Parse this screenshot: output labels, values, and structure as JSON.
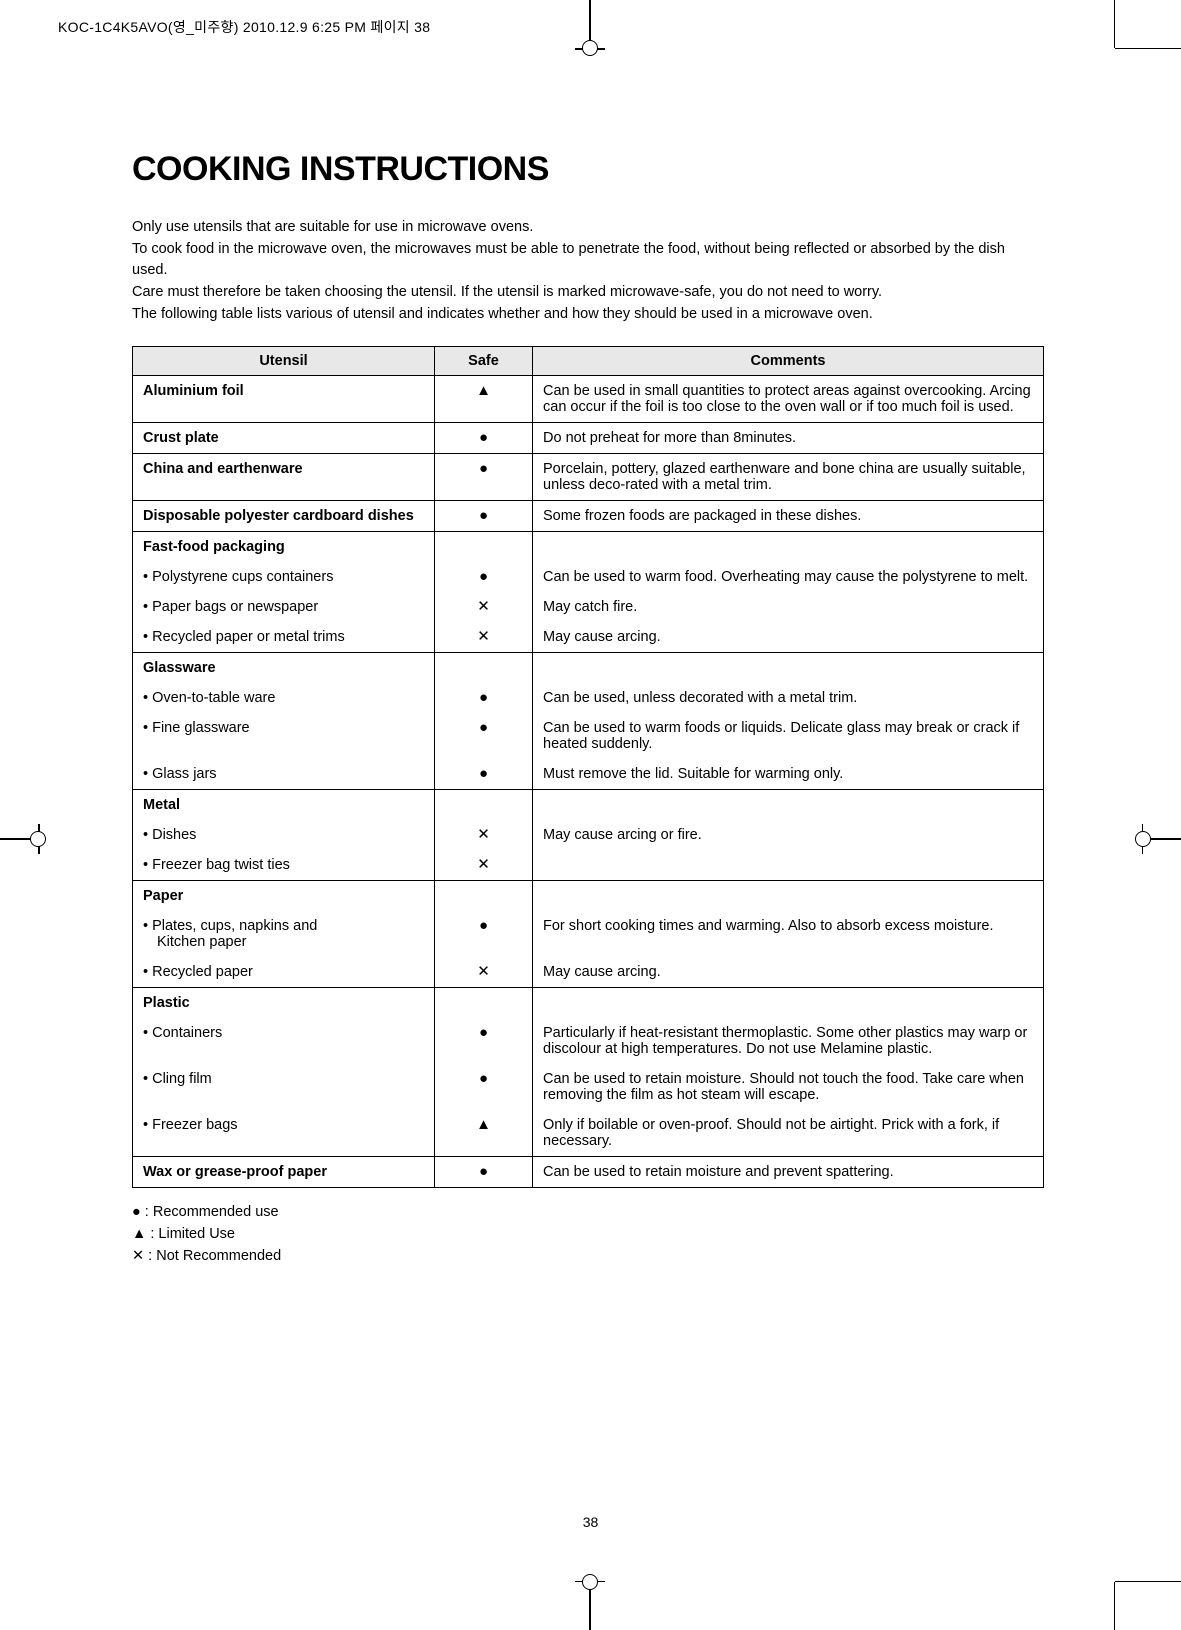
{
  "header_line": "KOC-1C4K5AVO(영_미주향) 2010.12.9 6:25 PM 페이지 38",
  "title": "COOKING INSTRUCTIONS",
  "intro": [
    "Only use utensils that are suitable for use in microwave ovens.",
    "To cook food in the microwave oven, the microwaves must be able to penetrate the food, without being reflected or absorbed by the dish used.",
    "Care must therefore be taken choosing the utensil. If the utensil is marked microwave-safe, you do not need to worry.",
    "The following table lists various of utensil and indicates whether and how they should be used in a microwave oven."
  ],
  "columns": {
    "utensil": "Utensil",
    "safe": "Safe",
    "comments": "Comments"
  },
  "symbols": {
    "recommended": "●",
    "limited": "▲",
    "not": "✕"
  },
  "rows": [
    {
      "utensil_bold": "Aluminium foil",
      "safe": "▲",
      "comments": "Can be used in small quantities to protect areas against overcooking. Arcing can occur if the foil is too close to the oven wall or if too much foil is used.",
      "section_end": true
    },
    {
      "utensil_bold": "Crust plate",
      "safe": "●",
      "comments": "Do not preheat for more than 8minutes.",
      "section_end": true
    },
    {
      "utensil_bold": "China and earthenware",
      "safe": "●",
      "comments": "Porcelain, pottery, glazed earthenware and bone china are usually suitable, unless deco-rated with a metal trim.",
      "section_end": true
    },
    {
      "utensil_bold": "Disposable polyester cardboard dishes",
      "safe": "●",
      "comments": "Some frozen foods are packaged in these dishes.",
      "section_end": true
    },
    {
      "utensil_bold": "Fast-food packaging",
      "subs": [
        {
          "label": "• Polystyrene cups containers",
          "safe": "●",
          "comment": "Can be used to warm food. Overheating may cause the polystyrene to melt."
        },
        {
          "label": "• Paper bags or newspaper",
          "safe": "✕",
          "comment": "May catch fire."
        },
        {
          "label": "• Recycled paper or metal trims",
          "safe": "✕",
          "comment": "May cause arcing."
        }
      ],
      "section_end": true
    },
    {
      "utensil_bold": "Glassware",
      "subs": [
        {
          "label": "• Oven-to-table ware",
          "safe": "●",
          "comment": "Can be used, unless decorated with a metal trim."
        },
        {
          "label": "• Fine glassware",
          "safe": "●",
          "comment": "Can be used to warm foods or liquids. Delicate glass may break or crack if heated suddenly."
        },
        {
          "label": "• Glass jars",
          "safe": "●",
          "comment": "Must remove the lid. Suitable for warming only."
        }
      ],
      "section_end": true
    },
    {
      "utensil_bold": "Metal",
      "subs": [
        {
          "label": "• Dishes",
          "safe": "✕",
          "comment": "May cause arcing or fire."
        },
        {
          "label": "• Freezer bag twist ties",
          "safe": "✕",
          "comment": ""
        }
      ],
      "section_end": true
    },
    {
      "utensil_bold": "Paper",
      "subs": [
        {
          "label": "• Plates, cups, napkins and",
          "label2": "Kitchen paper",
          "safe": "●",
          "comment": "For short cooking times and warming. Also to absorb excess moisture."
        },
        {
          "label": "• Recycled paper",
          "safe": "✕",
          "comment": "May cause arcing."
        }
      ],
      "section_end": true
    },
    {
      "utensil_bold": "Plastic",
      "subs": [
        {
          "label": "• Containers",
          "safe": "●",
          "comment": "Particularly if heat-resistant thermoplastic. Some other plastics may warp or discolour at high temperatures. Do not use Melamine plastic."
        },
        {
          "label": "• Cling film",
          "safe": "●",
          "comment": "Can be used to retain moisture. Should not touch the food. Take care when removing the film as hot steam will escape."
        },
        {
          "label": "• Freezer bags",
          "safe": "▲",
          "comment": "Only if boilable or oven-proof. Should not be airtight. Prick with a fork, if necessary."
        }
      ],
      "section_end": true
    },
    {
      "utensil_bold": "Wax or grease-proof paper",
      "safe": "●",
      "comments": "Can be used to retain moisture and prevent spattering.",
      "section_end": true
    }
  ],
  "legend": [
    "● : Recommended use",
    "▲ : Limited Use",
    "✕ : Not Recommended"
  ],
  "page_number": "38"
}
